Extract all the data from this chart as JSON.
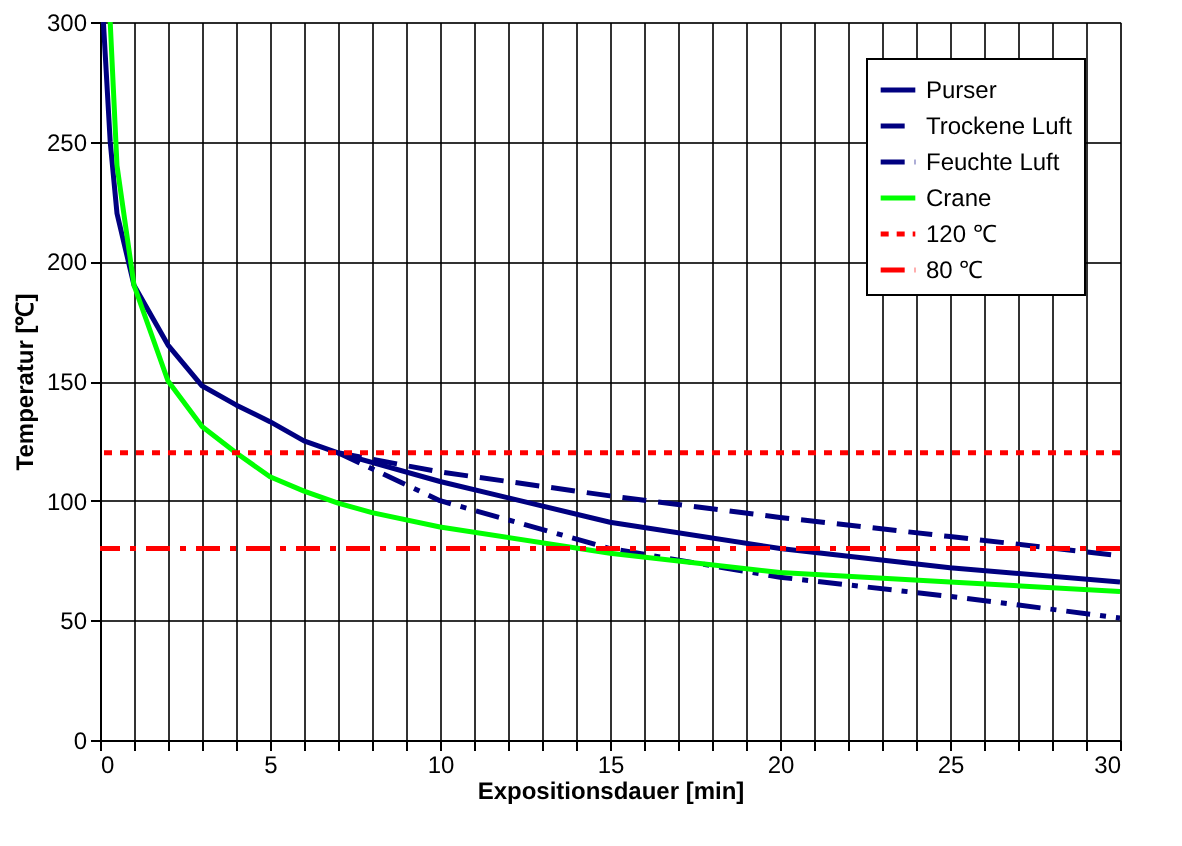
{
  "chart_data": {
    "type": "line",
    "xlabel": "Expositionsdauer [min]",
    "ylabel": "Temperatur [℃]",
    "xlim": [
      0,
      30
    ],
    "ylim": [
      0,
      300
    ],
    "xticks": [
      0,
      {
        "value": 1,
        "label": null
      },
      {
        "value": 2,
        "label": null
      },
      {
        "value": 3,
        "label": null
      },
      {
        "value": 4,
        "label": null
      },
      5,
      {
        "value": 6,
        "label": null
      },
      {
        "value": 7,
        "label": null
      },
      {
        "value": 8,
        "label": null
      },
      {
        "value": 9,
        "label": null
      },
      10,
      {
        "value": 11,
        "label": null
      },
      {
        "value": 12,
        "label": null
      },
      {
        "value": 13,
        "label": null
      },
      {
        "value": 14,
        "label": null
      },
      15,
      {
        "value": 16,
        "label": null
      },
      {
        "value": 17,
        "label": null
      },
      {
        "value": 18,
        "label": null
      },
      {
        "value": 19,
        "label": null
      },
      20,
      {
        "value": 21,
        "label": null
      },
      {
        "value": 22,
        "label": null
      },
      {
        "value": 23,
        "label": null
      },
      {
        "value": 24,
        "label": null
      },
      25,
      {
        "value": 26,
        "label": null
      },
      {
        "value": 27,
        "label": null
      },
      {
        "value": 28,
        "label": null
      },
      {
        "value": 29,
        "label": null
      },
      30
    ],
    "yticks": [
      0,
      50,
      100,
      150,
      200,
      250,
      300
    ],
    "grid": true,
    "legend": "top right",
    "marker": "none",
    "series": [
      {
        "name": "Purser",
        "color": "#000080",
        "line_style": "solid",
        "x": [
          0.1,
          0.3,
          0.5,
          1,
          2,
          3,
          4,
          5,
          6,
          7,
          10,
          15,
          20,
          25,
          30
        ],
        "values": [
          300,
          250,
          220,
          190,
          165,
          148,
          140,
          133,
          125,
          120,
          108,
          91,
          80,
          72,
          66
        ]
      },
      {
        "name": "Trockene Luft",
        "color": "#000080",
        "line_style": "dashed",
        "x": [
          7,
          10,
          15,
          20,
          25,
          30
        ],
        "values": [
          120,
          112,
          102,
          93,
          85,
          77
        ]
      },
      {
        "name": "Feuchte Luft",
        "color": "#000080",
        "line_style": "dashdot",
        "x": [
          7,
          10,
          15,
          20,
          25,
          30
        ],
        "values": [
          120,
          100,
          80,
          68,
          60,
          51
        ]
      },
      {
        "name": "Crane",
        "color": "#00ff00",
        "line_style": "solid",
        "x": [
          0.3,
          0.5,
          1,
          2,
          3,
          4,
          5,
          6,
          7,
          8,
          10,
          15,
          20,
          25,
          30
        ],
        "values": [
          300,
          240,
          190,
          150,
          131,
          120,
          110,
          104,
          99,
          95,
          89,
          78,
          70,
          66,
          62
        ]
      }
    ],
    "ref_lines": [
      {
        "axis": "y",
        "value": 120,
        "label": "120 ℃",
        "color": "#ff0000",
        "line_style": "dotted"
      },
      {
        "axis": "y",
        "value": 80,
        "label": "80 ℃",
        "color": "#ff0000",
        "line_style": "dashdot"
      }
    ]
  }
}
